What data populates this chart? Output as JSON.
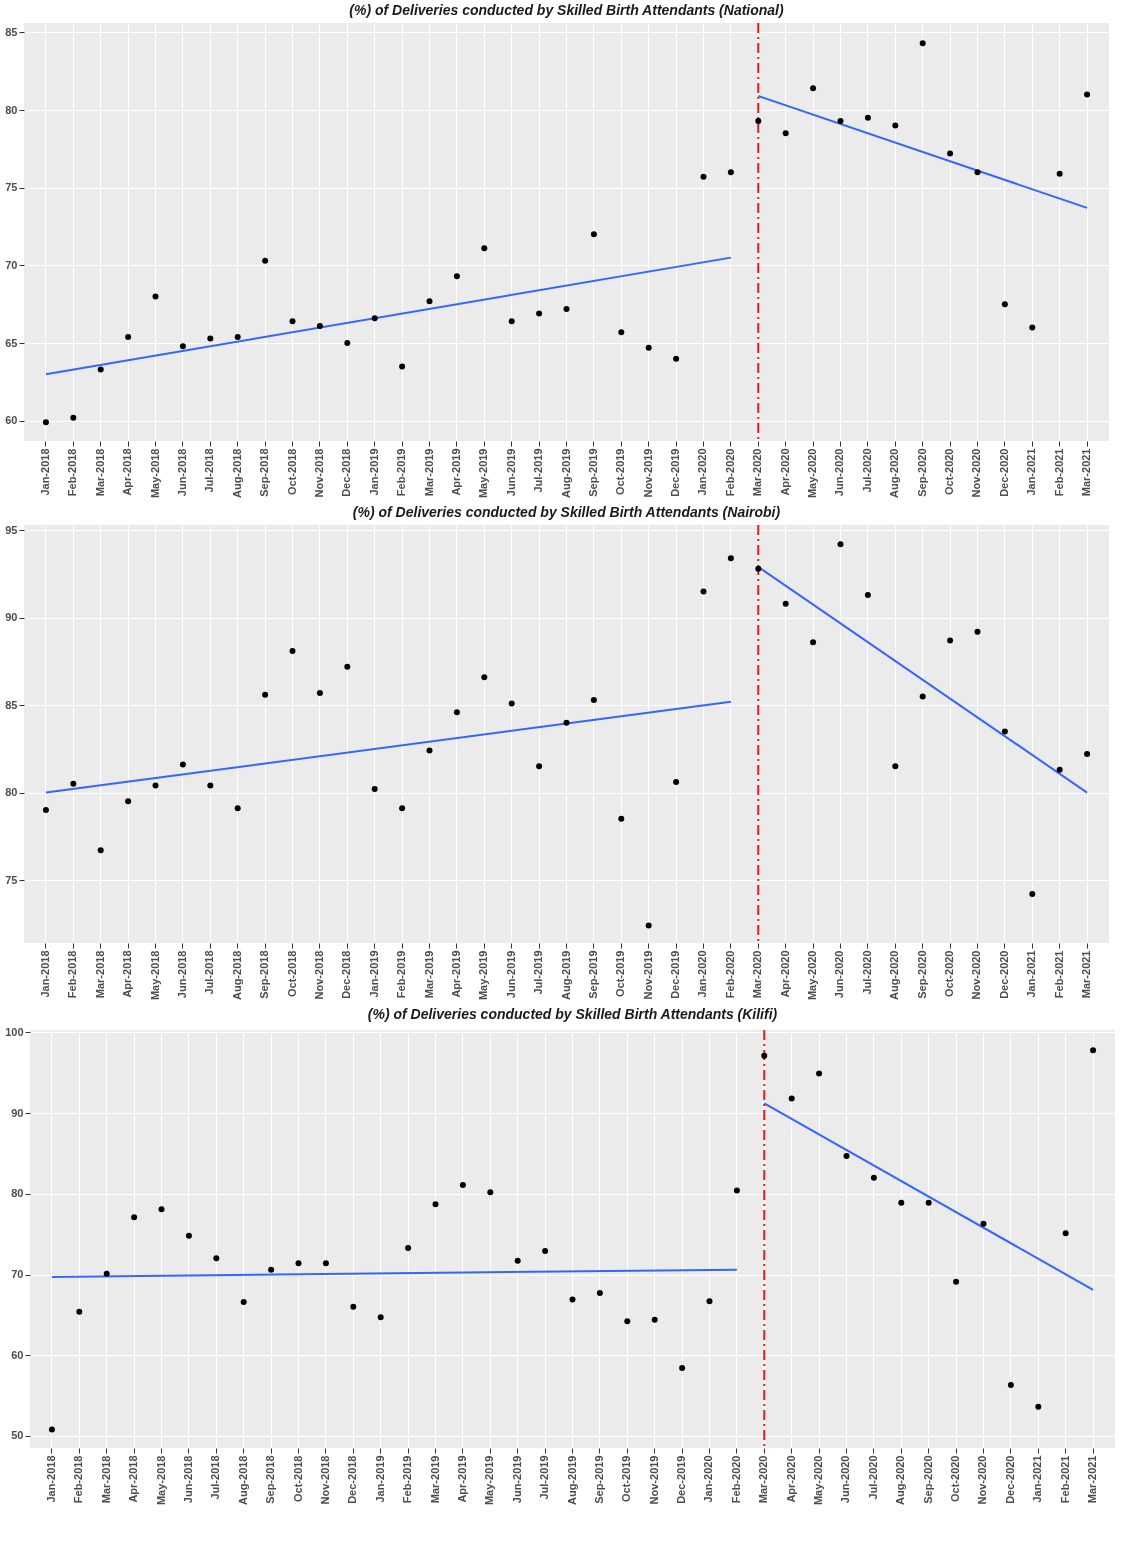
{
  "chart_data": [
    {
      "type": "scatter",
      "title": "(%) of Deliveries conducted by Skilled Birth Attendants (National)",
      "categories": [
        "Jan-2018",
        "Feb-2018",
        "Mar-2018",
        "Apr-2018",
        "May-2018",
        "Jun-2018",
        "Jul-2018",
        "Aug-2018",
        "Sep-2018",
        "Oct-2018",
        "Nov-2018",
        "Dec-2018",
        "Jan-2019",
        "Feb-2019",
        "Mar-2019",
        "Apr-2019",
        "May-2019",
        "Jun-2019",
        "Jul-2019",
        "Aug-2019",
        "Sep-2019",
        "Oct-2019",
        "Nov-2019",
        "Dec-2019",
        "Jan-2020",
        "Feb-2020",
        "Mar-2020",
        "Apr-2020",
        "May-2020",
        "Jun-2020",
        "Jul-2020",
        "Aug-2020",
        "Sep-2020",
        "Oct-2020",
        "Nov-2020",
        "Dec-2020",
        "Jan-2021",
        "Feb-2021",
        "Mar-2021"
      ],
      "ylim": [
        58.7,
        85.6
      ],
      "yticks": [
        60,
        65,
        70,
        75,
        80,
        85
      ],
      "grid": true,
      "series": [
        {
          "color": "#000000",
          "marker": "circle",
          "values": [
            59.9,
            60.2,
            63.3,
            65.4,
            68.0,
            64.8,
            65.3,
            65.4,
            70.3,
            66.4,
            66.1,
            65.0,
            66.6,
            63.5,
            67.7,
            69.3,
            71.1,
            66.4,
            66.9,
            67.2,
            72.0,
            65.7,
            64.7,
            64.0,
            75.7,
            76.0,
            79.3,
            78.5,
            81.4,
            79.3,
            79.5,
            79.0,
            84.3,
            77.2,
            76.0,
            67.5,
            66.0,
            75.9,
            81.0
          ]
        },
        {
          "type": "line",
          "color": "#3366ff",
          "x": [
            "Jan-2018",
            "Feb-2020"
          ],
          "values": [
            63.0,
            70.5
          ]
        },
        {
          "type": "line",
          "color": "#3366ff",
          "x": [
            "Mar-2020",
            "Mar-2021"
          ],
          "values": [
            80.9,
            73.7
          ]
        }
      ],
      "ref_lines": [
        {
          "axis": "x",
          "value": "Mar-2020",
          "color": "#e31a1c",
          "line_style": "dashed"
        }
      ]
    },
    {
      "type": "scatter",
      "title": "(%) of Deliveries conducted by Skilled Birth Attendants (Nairobi)",
      "categories": [
        "Jan-2018",
        "Feb-2018",
        "Mar-2018",
        "Apr-2018",
        "May-2018",
        "Jun-2018",
        "Jul-2018",
        "Aug-2018",
        "Sep-2018",
        "Oct-2018",
        "Nov-2018",
        "Dec-2018",
        "Jan-2019",
        "Feb-2019",
        "Mar-2019",
        "Apr-2019",
        "May-2019",
        "Jun-2019",
        "Jul-2019",
        "Aug-2019",
        "Sep-2019",
        "Oct-2019",
        "Nov-2019",
        "Dec-2019",
        "Jan-2020",
        "Feb-2020",
        "Mar-2020",
        "Apr-2020",
        "May-2020",
        "Jun-2020",
        "Jul-2020",
        "Aug-2020",
        "Sep-2020",
        "Oct-2020",
        "Nov-2020",
        "Dec-2020",
        "Jan-2021",
        "Feb-2021",
        "Mar-2021"
      ],
      "ylim": [
        71.4,
        95.3
      ],
      "yticks": [
        75,
        80,
        85,
        90,
        95
      ],
      "grid": true,
      "series": [
        {
          "color": "#000000",
          "marker": "circle",
          "values": [
            79.0,
            80.5,
            76.7,
            79.5,
            80.4,
            81.6,
            80.4,
            79.1,
            85.6,
            88.1,
            85.7,
            87.2,
            80.2,
            79.1,
            82.4,
            84.6,
            86.6,
            85.1,
            81.5,
            84.0,
            85.3,
            78.5,
            72.4,
            80.6,
            91.5,
            93.4,
            92.8,
            90.8,
            88.6,
            94.2,
            91.3,
            81.5,
            85.5,
            88.7,
            89.2,
            83.5,
            74.2,
            81.3,
            82.2
          ]
        },
        {
          "type": "line",
          "color": "#3366ff",
          "x": [
            "Jan-2018",
            "Feb-2020"
          ],
          "values": [
            80.0,
            85.2
          ]
        },
        {
          "type": "line",
          "color": "#3366ff",
          "x": [
            "Mar-2020",
            "Mar-2021"
          ],
          "values": [
            92.9,
            80.0
          ]
        }
      ],
      "ref_lines": [
        {
          "axis": "x",
          "value": "Mar-2020",
          "color": "#e31a1c",
          "line_style": "dashed"
        }
      ]
    },
    {
      "type": "scatter",
      "title": "(%) of Deliveries conducted by Skilled Birth Attendants (Kilifi)",
      "categories": [
        "Jan-2018",
        "Feb-2018",
        "Mar-2018",
        "Apr-2018",
        "May-2018",
        "Jun-2018",
        "Jul-2018",
        "Aug-2018",
        "Sep-2018",
        "Oct-2018",
        "Nov-2018",
        "Dec-2018",
        "Jan-2019",
        "Feb-2019",
        "Mar-2019",
        "Apr-2019",
        "May-2019",
        "Jun-2019",
        "Jul-2019",
        "Aug-2019",
        "Sep-2019",
        "Oct-2019",
        "Nov-2019",
        "Dec-2019",
        "Jan-2020",
        "Feb-2020",
        "Mar-2020",
        "Apr-2020",
        "May-2020",
        "Jun-2020",
        "Jul-2020",
        "Aug-2020",
        "Sep-2020",
        "Oct-2020",
        "Nov-2020",
        "Dec-2020",
        "Jan-2021",
        "Feb-2021",
        "Mar-2021"
      ],
      "ylim": [
        48.5,
        100.3
      ],
      "yticks": [
        50,
        60,
        70,
        80,
        90,
        100
      ],
      "grid": true,
      "series": [
        {
          "color": "#000000",
          "marker": "circle",
          "values": [
            50.8,
            65.4,
            70.1,
            77.1,
            78.1,
            74.8,
            72.0,
            66.6,
            70.6,
            71.4,
            71.4,
            66.0,
            64.7,
            73.3,
            78.7,
            81.1,
            80.2,
            71.7,
            72.9,
            66.9,
            67.7,
            64.2,
            64.4,
            58.4,
            66.7,
            80.4,
            97.1,
            91.8,
            94.9,
            84.7,
            82.0,
            78.9,
            78.9,
            69.1,
            76.3,
            56.3,
            53.6,
            75.1,
            97.8
          ]
        },
        {
          "type": "line",
          "color": "#3366ff",
          "x": [
            "Jan-2018",
            "Feb-2020"
          ],
          "values": [
            69.7,
            70.6
          ]
        },
        {
          "type": "line",
          "color": "#3366ff",
          "x": [
            "Mar-2020",
            "Mar-2021"
          ],
          "values": [
            91.2,
            68.1
          ]
        }
      ],
      "ref_lines": [
        {
          "axis": "x",
          "value": "Mar-2020",
          "color": "#e31a1c",
          "line_style": "dashed"
        }
      ]
    }
  ]
}
